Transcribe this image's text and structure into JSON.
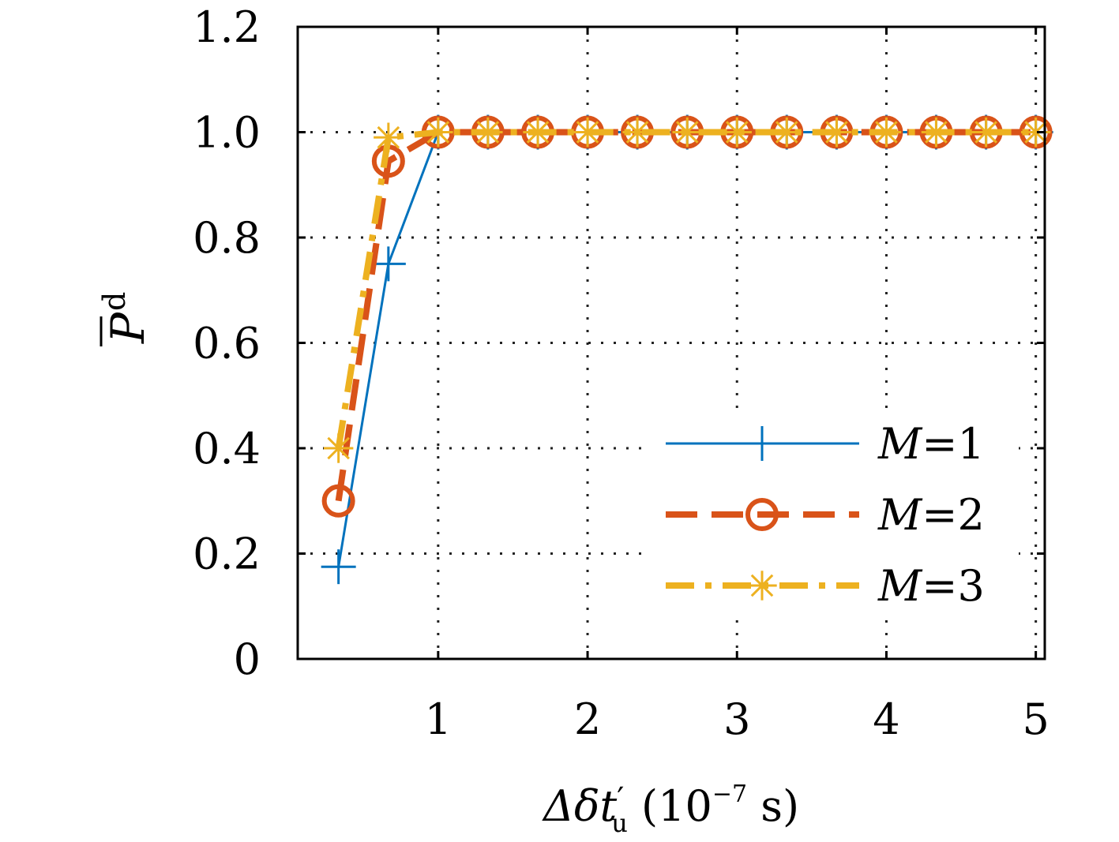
{
  "chart_data": {
    "type": "line",
    "xlabel": {
      "main": "Δδt",
      "prime": "′",
      "sub": "u",
      "unit_pre": " (10",
      "unit_exp": "−7",
      "unit_post": " s)"
    },
    "ylabel": {
      "main": "P",
      "sub": "d"
    },
    "xlim": [
      0.06,
      5.06
    ],
    "ylim": [
      0,
      1.2
    ],
    "xticks": [
      1,
      2,
      3,
      4,
      5
    ],
    "xtick_labels": [
      "1",
      "2",
      "3",
      "4",
      "5"
    ],
    "yticks": [
      0,
      0.2,
      0.4,
      0.6,
      0.8,
      1.0,
      1.2
    ],
    "ytick_labels": [
      "0",
      "0.2",
      "0.4",
      "0.6",
      "0.8",
      "1.0",
      "1.2"
    ],
    "grid": true,
    "grid_style": "dotted",
    "legend_position": "lower-right",
    "x": [
      0.333,
      0.667,
      1.0,
      1.333,
      1.667,
      2.0,
      2.333,
      2.667,
      3.0,
      3.333,
      3.667,
      4.0,
      4.333,
      4.667,
      5.0
    ],
    "series": [
      {
        "name": "M=1",
        "name_var": "M",
        "name_eq": "=1",
        "color": "#0072BD",
        "dash": "solid",
        "marker": "plus",
        "values": [
          0.175,
          0.75,
          1.0,
          1.0,
          1.0,
          1.0,
          1.0,
          1.0,
          1.0,
          1.0,
          1.0,
          1.0,
          1.0,
          1.0,
          1.0
        ]
      },
      {
        "name": "M=2",
        "name_var": "M",
        "name_eq": "=2",
        "color": "#D95319",
        "dash": "dashed",
        "marker": "circle",
        "values": [
          0.3,
          0.945,
          1.0,
          1.0,
          1.0,
          1.0,
          1.0,
          1.0,
          1.0,
          1.0,
          1.0,
          1.0,
          1.0,
          1.0,
          1.0
        ]
      },
      {
        "name": "M=3",
        "name_var": "M",
        "name_eq": "=3",
        "color": "#EDB120",
        "dash": "dashdot",
        "marker": "asterisk",
        "values": [
          0.4,
          0.99,
          1.0,
          1.0,
          1.0,
          1.0,
          1.0,
          1.0,
          1.0,
          1.0,
          1.0,
          1.0,
          1.0,
          1.0,
          1.0
        ]
      }
    ]
  }
}
